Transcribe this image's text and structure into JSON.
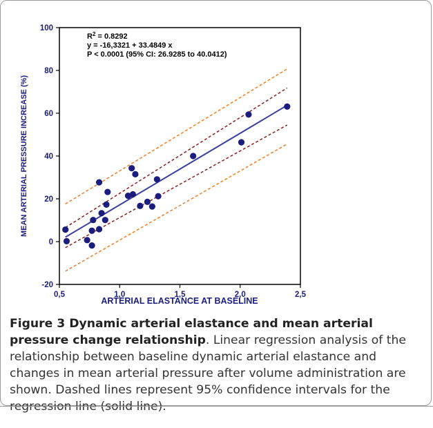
{
  "chart_data": {
    "type": "scatter",
    "title": "",
    "xlabel": "ARTERIAL ELASTANCE AT BASELINE",
    "ylabel": "MEAN ARTERIAL PRESSURE INCREASE (%)",
    "xlim": [
      0.5,
      2.5
    ],
    "ylim": [
      -20,
      100
    ],
    "xticks": [
      0.5,
      1.0,
      1.5,
      2.0,
      2.5
    ],
    "xtick_labels": [
      "0,5",
      "1,0",
      "1,5",
      "2,0",
      "2,5"
    ],
    "yticks": [
      -20,
      0,
      20,
      40,
      60,
      80,
      100
    ],
    "ytick_labels": [
      "-20",
      "0",
      "20",
      "40",
      "60",
      "80",
      "100"
    ],
    "grid": false,
    "annotations": [
      {
        "prefix": "R",
        "sup": "2",
        "text": " = 0.8292"
      },
      {
        "prefix": "",
        "sup": "",
        "text": "y = -16,3321 + 33.4849 x"
      },
      {
        "prefix": "",
        "sup": "",
        "text": "P < 0.0001 (95% CI: 26.9285 to 40.0412)"
      }
    ],
    "points": [
      [
        0.55,
        5.6
      ],
      [
        0.56,
        0.2
      ],
      [
        0.73,
        0.7
      ],
      [
        0.77,
        -1.8
      ],
      [
        0.77,
        5.1
      ],
      [
        0.78,
        10.1
      ],
      [
        0.83,
        27.7
      ],
      [
        0.83,
        5.8
      ],
      [
        0.85,
        13.3
      ],
      [
        0.88,
        10.1
      ],
      [
        0.89,
        17.3
      ],
      [
        0.9,
        23.2
      ],
      [
        1.07,
        21.4
      ],
      [
        1.1,
        34.3
      ],
      [
        1.11,
        22.1
      ],
      [
        1.13,
        31.5
      ],
      [
        1.17,
        16.7
      ],
      [
        1.23,
        18.6
      ],
      [
        1.27,
        16.4
      ],
      [
        1.31,
        29.1
      ],
      [
        1.32,
        21.2
      ],
      [
        1.61,
        40.0
      ],
      [
        2.01,
        46.4
      ],
      [
        2.07,
        59.4
      ],
      [
        2.39,
        63.1
      ]
    ],
    "regression": {
      "intercept": -16.3321,
      "slope": 33.4849,
      "x_range": [
        0.55,
        2.39
      ]
    },
    "confidence_band": {
      "lower": [
        [
          0.55,
          -2.8
        ],
        [
          2.39,
          54.5
        ]
      ],
      "upper": [
        [
          0.55,
          6.6
        ],
        [
          2.39,
          71.8
        ]
      ]
    },
    "prediction_band": {
      "lower": [
        [
          0.55,
          -13.8
        ],
        [
          2.39,
          45.6
        ]
      ],
      "upper": [
        [
          0.55,
          17.6
        ],
        [
          2.39,
          80.7
        ]
      ]
    },
    "colors": {
      "points": "#1b1d7e",
      "regression_line": "#3a3fa0",
      "confidence_band": "#8b1e1e",
      "prediction_band": "#f07e1e",
      "axis_text": "#1b1d7e"
    }
  },
  "caption": {
    "label": "Figure 3 Dynamic arterial elastance and mean arterial pressure change relationship",
    "text": ". Linear regression analysis of the relationship between baseline dynamic arterial elastance and changes in mean arterial pressure after volume administration are shown. Dashed lines represent 95% confidence intervals for the regression line (solid line)."
  }
}
